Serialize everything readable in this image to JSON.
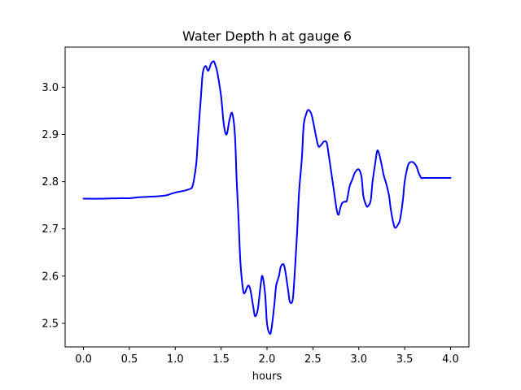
{
  "chart_data": {
    "type": "line",
    "title": "Water Depth h at gauge 6",
    "xlabel": "hours",
    "ylabel": "",
    "xlim": [
      -0.2,
      4.2
    ],
    "ylim": [
      2.45,
      3.085
    ],
    "x_ticks": [
      0.0,
      0.5,
      1.0,
      1.5,
      2.0,
      2.5,
      3.0,
      3.5,
      4.0
    ],
    "x_tick_labels": [
      "0.0",
      "0.5",
      "1.0",
      "1.5",
      "2.0",
      "2.5",
      "3.0",
      "3.5",
      "4.0"
    ],
    "y_ticks": [
      2.5,
      2.6,
      2.7,
      2.8,
      2.9,
      3.0
    ],
    "y_tick_labels": [
      "2.5",
      "2.6",
      "2.7",
      "2.8",
      "2.9",
      "3.0"
    ],
    "grid": false,
    "legend": "none",
    "colors": {
      "line": "#0000ff",
      "axes": "#000000",
      "background": "#ffffff"
    },
    "series": [
      {
        "x": [
          0.0,
          0.2,
          0.4,
          0.5,
          0.6,
          0.7,
          0.8,
          0.9,
          0.95,
          1.0,
          1.05,
          1.1,
          1.15,
          1.18,
          1.2,
          1.23,
          1.25,
          1.28,
          1.3,
          1.33,
          1.36,
          1.39,
          1.42,
          1.44,
          1.46,
          1.5,
          1.53,
          1.56,
          1.59,
          1.62,
          1.65,
          1.67,
          1.69,
          1.71,
          1.74,
          1.76,
          1.78,
          1.8,
          1.82,
          1.85,
          1.87,
          1.9,
          1.93,
          1.95,
          1.98,
          2.0,
          2.03,
          2.05,
          2.08,
          2.1,
          2.13,
          2.15,
          2.18,
          2.2,
          2.23,
          2.25,
          2.28,
          2.3,
          2.33,
          2.35,
          2.38,
          2.4,
          2.43,
          2.45,
          2.48,
          2.5,
          2.53,
          2.56,
          2.59,
          2.62,
          2.65,
          2.67,
          2.7,
          2.73,
          2.76,
          2.78,
          2.8,
          2.82,
          2.85,
          2.87,
          2.9,
          2.93,
          2.96,
          3.0,
          3.03,
          3.05,
          3.08,
          3.1,
          3.13,
          3.15,
          3.18,
          3.2,
          3.22,
          3.25,
          3.27,
          3.3,
          3.33,
          3.35,
          3.38,
          3.4,
          3.43,
          3.45,
          3.48,
          3.5,
          3.53,
          3.55,
          3.58,
          3.6,
          3.63,
          3.65,
          3.68,
          3.7,
          3.73,
          3.75,
          3.78,
          3.8,
          3.83,
          3.85,
          3.88,
          3.9,
          3.93,
          3.95,
          3.98,
          4.0
        ],
        "values": [
          2.764,
          2.764,
          2.765,
          2.765,
          2.767,
          2.768,
          2.769,
          2.771,
          2.774,
          2.777,
          2.779,
          2.781,
          2.784,
          2.787,
          2.8,
          2.84,
          2.9,
          2.98,
          3.03,
          3.045,
          3.035,
          3.05,
          3.055,
          3.045,
          3.03,
          2.98,
          2.92,
          2.9,
          2.93,
          2.945,
          2.9,
          2.8,
          2.72,
          2.63,
          2.57,
          2.565,
          2.575,
          2.58,
          2.57,
          2.535,
          2.515,
          2.53,
          2.58,
          2.6,
          2.56,
          2.5,
          2.478,
          2.49,
          2.54,
          2.58,
          2.6,
          2.62,
          2.625,
          2.61,
          2.57,
          2.545,
          2.55,
          2.6,
          2.7,
          2.78,
          2.85,
          2.92,
          2.945,
          2.952,
          2.945,
          2.93,
          2.9,
          2.875,
          2.878,
          2.885,
          2.883,
          2.86,
          2.82,
          2.78,
          2.74,
          2.73,
          2.745,
          2.755,
          2.758,
          2.76,
          2.79,
          2.805,
          2.82,
          2.826,
          2.81,
          2.77,
          2.75,
          2.748,
          2.76,
          2.8,
          2.84,
          2.865,
          2.86,
          2.835,
          2.815,
          2.795,
          2.77,
          2.74,
          2.71,
          2.702,
          2.71,
          2.72,
          2.76,
          2.8,
          2.83,
          2.84,
          2.842,
          2.84,
          2.832,
          2.82,
          2.808,
          2.808,
          2.808,
          2.808,
          2.808,
          2.808,
          2.808,
          2.808,
          2.808,
          2.808,
          2.808,
          2.808,
          2.808,
          2.808
        ]
      }
    ]
  }
}
